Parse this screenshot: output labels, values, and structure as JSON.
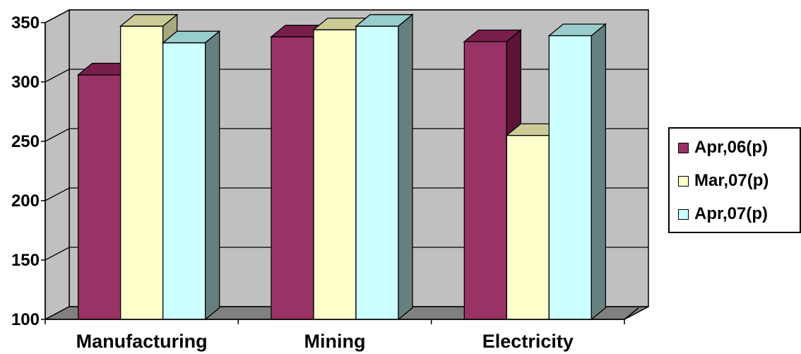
{
  "chart_data": {
    "type": "bar",
    "categories": [
      "Manufacturing",
      "Mining",
      "Electricity"
    ],
    "series": [
      {
        "name": "Apr,06(p)",
        "values": [
          306,
          338,
          334
        ],
        "color": "#993366",
        "top_color": "#771f4a",
        "side_color": "#5c1535"
      },
      {
        "name": "Mar,07(p)",
        "values": [
          347,
          344,
          255
        ],
        "color": "#ffffcc",
        "top_color": "#cccc99",
        "side_color": "#a8a880"
      },
      {
        "name": "Apr,07(p)",
        "values": [
          333,
          347,
          339
        ],
        "color": "#ccffff",
        "top_color": "#99cccc",
        "side_color": "#668080"
      }
    ],
    "ylim": [
      100,
      350
    ],
    "yticks": [
      100,
      150,
      200,
      250,
      300,
      350
    ],
    "ytick_labels": [
      "100",
      "150",
      "200",
      "250",
      "300",
      "350"
    ],
    "grid": true,
    "legend_position": "right",
    "wall_color": "#c0c0c0",
    "floor_color": "#808080"
  }
}
